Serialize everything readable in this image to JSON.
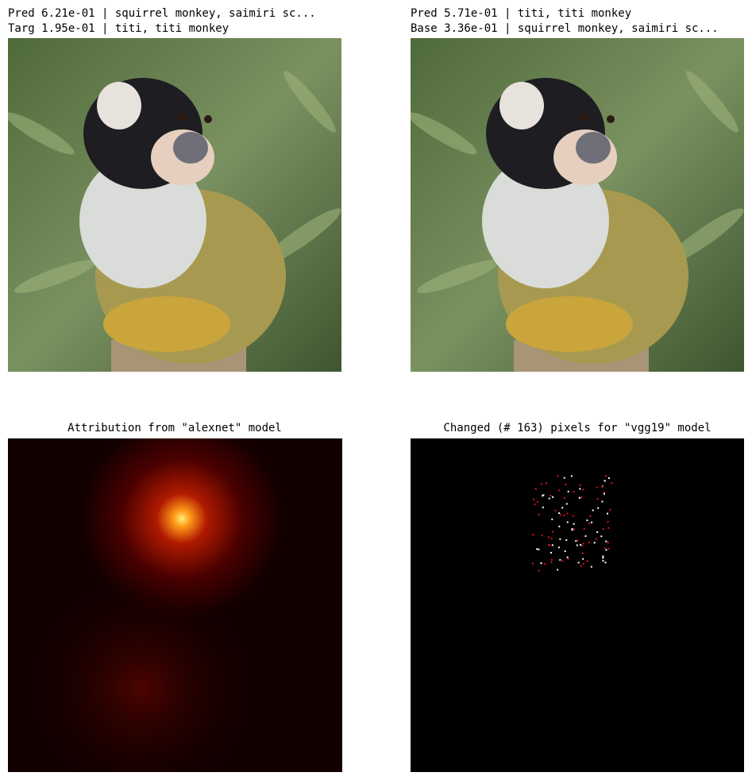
{
  "panels": [
    {
      "title": [
        "Pred 6.21e-01 | squirrel monkey, saimiri sc...",
        "Targ 1.95e-01 | titi, titi monkey"
      ]
    },
    {
      "title": [
        "Pred 5.71e-01 | titi, titi monkey",
        "Base 3.36e-01 | squirrel monkey, saimiri sc..."
      ]
    },
    {
      "title": "Attribution from \"alexnet\" model"
    },
    {
      "title": "Changed (# 163) pixels for \"vgg19\" model"
    }
  ]
}
